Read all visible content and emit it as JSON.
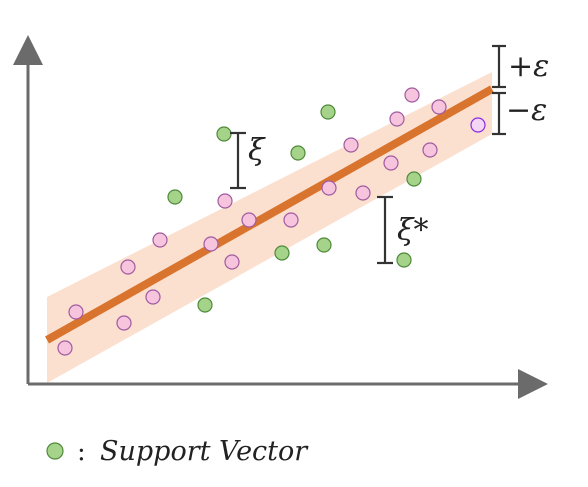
{
  "colors": {
    "axis": "#6b6b6b",
    "band_fill": "#fbe0d0",
    "regression_line": "#d9742f",
    "point_fill": "#f7c4de",
    "point_stroke": "#a05ba0",
    "support_vector_fill": "#a6d38a",
    "support_vector_stroke": "#4f8a3a",
    "bracket": "#333333"
  },
  "labels": {
    "epsilon_plus": "+𝜀",
    "epsilon_minus": "−𝜀",
    "xi": "ξ",
    "xi_star": "ξ*"
  },
  "legend": {
    "separator": ":",
    "text": "Support Vector"
  }
}
